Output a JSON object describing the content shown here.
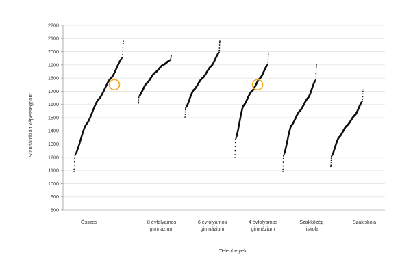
{
  "chart_data": {
    "type": "scatter",
    "title": "",
    "xlabel": "Telephelyek",
    "ylabel": "Standardizált képességpont",
    "ylim": [
      800,
      2200
    ],
    "y_ticks": [
      "800",
      "900",
      "1000",
      "1100",
      "1200",
      "1300",
      "1400",
      "1500",
      "1600",
      "1700",
      "1800",
      "1900",
      "2000",
      "2100",
      "2200"
    ],
    "grid": true,
    "legend": "none",
    "categories": [
      {
        "line1": "Összes",
        "line2": ""
      },
      {
        "line1": "8 évfolyamos",
        "line2": "gimnázium"
      },
      {
        "line1": "6 évfolyamos",
        "line2": "gimnázium"
      },
      {
        "line1": "4 évfolyamos",
        "line2": "gimnázium"
      },
      {
        "line1": "Szakközép-",
        "line2": "iskola"
      },
      {
        "line1": "Szakiskola",
        "line2": ""
      }
    ],
    "series": [
      {
        "category_index": 0,
        "min": 1090,
        "q1": 1450,
        "median": 1640,
        "q3": 1800,
        "max": 2080
      },
      {
        "category_index": 1,
        "min": 1610,
        "q1": 1760,
        "median": 1840,
        "q3": 1900,
        "max": 1970
      },
      {
        "category_index": 2,
        "min": 1500,
        "q1": 1710,
        "median": 1800,
        "q3": 1890,
        "max": 2080
      },
      {
        "category_index": 3,
        "min": 1200,
        "q1": 1590,
        "median": 1700,
        "q3": 1800,
        "max": 1990
      },
      {
        "category_index": 4,
        "min": 1090,
        "q1": 1440,
        "median": 1550,
        "q3": 1650,
        "max": 1900
      },
      {
        "category_index": 5,
        "min": 1130,
        "q1": 1350,
        "median": 1440,
        "q3": 1520,
        "max": 1710
      }
    ],
    "highlights": [
      {
        "category_index": 0,
        "y": 1750
      },
      {
        "category_index": 3,
        "y": 1750
      }
    ],
    "colors": {
      "points": "#111111",
      "highlight_ring": "#f0a818",
      "grid": "#e2e2e2"
    }
  }
}
